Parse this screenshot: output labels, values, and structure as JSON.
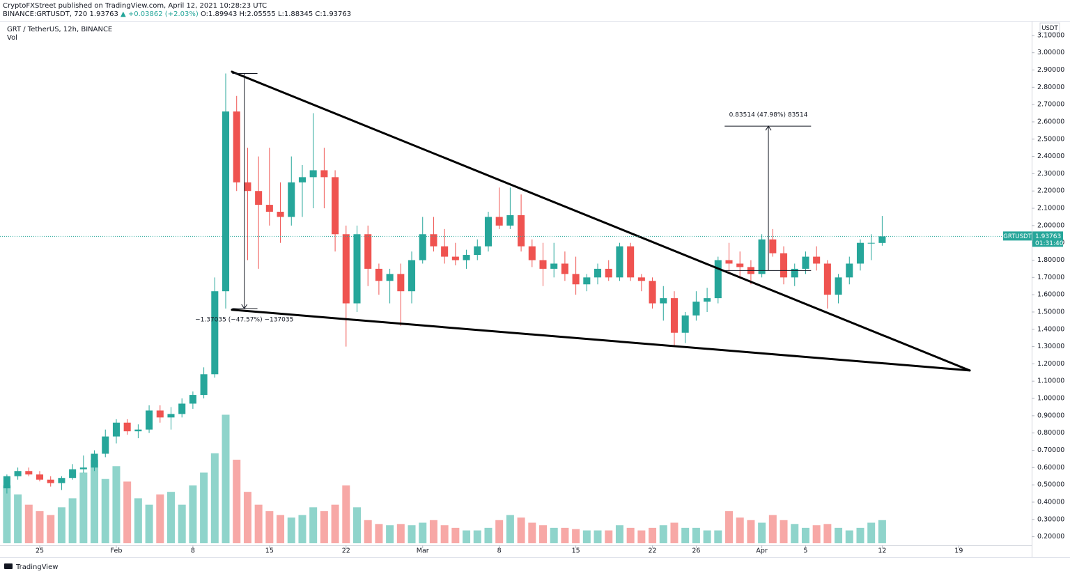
{
  "header": {
    "line1": "CryptoFXStreet published on TradingView.com, April 12, 2021 10:28:23 UTC",
    "symbol": "BINANCE:GRTUSDT, 720",
    "price": "1.93763",
    "change": "▲ +0.03862 (+2.03%)",
    "ohlc": "O:1.89943 H:2.05555 L:1.88345 C:1.93763"
  },
  "footer": {
    "brand": "TradingView"
  },
  "chart_data": {
    "type": "candlestick",
    "title": "GRT / TetherUS, 12h, BINANCE",
    "volume_label": "Vol",
    "currency": "USDT",
    "symbol_label": "GRTUSDT",
    "countdown": "01:31:40",
    "up_color": "#26a69a",
    "down_color": "#ef5350",
    "up_volume_color": "#8fd4cb",
    "down_volume_color": "#f7a8a6",
    "trendline_color": "#000000",
    "price_line_color": "#26a69a",
    "grid": false,
    "x": [
      22,
      23,
      24,
      25,
      26,
      27,
      28,
      29,
      30,
      31,
      32,
      33,
      34,
      35,
      36,
      37,
      38,
      39,
      40,
      41,
      42,
      43,
      44,
      45,
      46,
      47,
      48,
      49,
      50,
      51,
      52,
      53,
      54,
      55,
      56,
      57,
      58,
      59,
      60,
      61,
      62,
      63,
      64,
      65,
      66,
      67,
      68,
      69,
      70,
      71,
      72,
      73,
      74,
      75,
      76,
      77,
      78,
      79,
      80,
      81,
      82,
      83,
      84,
      85,
      86,
      87,
      88,
      89,
      90,
      91,
      92,
      93,
      94,
      95,
      96,
      97,
      98,
      99,
      100,
      101,
      102
    ],
    "open": [
      0.48,
      0.55,
      0.58,
      0.56,
      0.53,
      0.51,
      0.54,
      0.59,
      0.6,
      0.68,
      0.78,
      0.86,
      0.81,
      0.82,
      0.93,
      0.89,
      0.91,
      0.97,
      1.02,
      1.14,
      1.62,
      2.66,
      2.25,
      2.2,
      2.12,
      2.08,
      2.05,
      2.25,
      2.28,
      2.32,
      2.28,
      1.95,
      1.55,
      1.95,
      1.75,
      1.68,
      1.72,
      1.62,
      1.8,
      1.95,
      1.88,
      1.82,
      1.8,
      1.83,
      1.88,
      2.05,
      2.0,
      2.06,
      1.88,
      1.8,
      1.75,
      1.78,
      1.72,
      1.66,
      1.7,
      1.75,
      1.7,
      1.88,
      1.7,
      1.68,
      1.55,
      1.58,
      1.38,
      1.48,
      1.56,
      1.58,
      1.8,
      1.78,
      1.76,
      1.72,
      1.92,
      1.84,
      1.7,
      1.75,
      1.82,
      1.78,
      1.6,
      1.7,
      1.78,
      1.9,
      1.89943
    ],
    "high": [
      0.56,
      0.6,
      0.6,
      0.58,
      0.55,
      0.55,
      0.62,
      0.67,
      0.7,
      0.82,
      0.88,
      0.88,
      0.85,
      0.96,
      0.96,
      0.95,
      1.0,
      1.04,
      1.18,
      1.7,
      2.88,
      2.75,
      2.45,
      2.4,
      2.45,
      2.25,
      2.4,
      2.35,
      2.65,
      2.45,
      2.32,
      2.0,
      2.0,
      2.0,
      1.78,
      1.75,
      1.78,
      1.85,
      2.05,
      2.05,
      1.98,
      1.9,
      1.86,
      1.92,
      2.08,
      2.22,
      2.22,
      2.18,
      1.92,
      1.9,
      1.9,
      1.85,
      1.82,
      1.72,
      1.78,
      1.8,
      1.9,
      1.9,
      1.72,
      1.7,
      1.65,
      1.62,
      1.5,
      1.62,
      1.64,
      1.82,
      1.9,
      1.85,
      1.8,
      1.95,
      1.98,
      1.88,
      1.78,
      1.85,
      1.88,
      1.8,
      1.72,
      1.82,
      1.92,
      1.95,
      2.05555
    ],
    "low": [
      0.45,
      0.53,
      0.55,
      0.52,
      0.49,
      0.47,
      0.53,
      0.57,
      0.58,
      0.66,
      0.74,
      0.79,
      0.77,
      0.8,
      0.86,
      0.82,
      0.89,
      0.94,
      1.0,
      1.12,
      1.52,
      2.2,
      1.8,
      1.75,
      2.0,
      1.9,
      2.0,
      2.05,
      2.1,
      2.1,
      1.85,
      1.3,
      1.5,
      1.65,
      1.6,
      1.55,
      1.42,
      1.55,
      1.78,
      1.85,
      1.78,
      1.77,
      1.75,
      1.8,
      1.85,
      1.98,
      1.98,
      1.85,
      1.76,
      1.65,
      1.7,
      1.68,
      1.6,
      1.62,
      1.66,
      1.68,
      1.68,
      1.68,
      1.62,
      1.52,
      1.45,
      1.3,
      1.32,
      1.45,
      1.5,
      1.55,
      1.72,
      1.7,
      1.66,
      1.7,
      1.82,
      1.66,
      1.65,
      1.72,
      1.74,
      1.52,
      1.55,
      1.66,
      1.74,
      1.8,
      1.88345
    ],
    "close": [
      0.55,
      0.58,
      0.56,
      0.53,
      0.51,
      0.54,
      0.59,
      0.6,
      0.68,
      0.78,
      0.86,
      0.81,
      0.82,
      0.93,
      0.89,
      0.91,
      0.97,
      1.02,
      1.14,
      1.62,
      2.66,
      2.25,
      2.2,
      2.12,
      2.08,
      2.05,
      2.25,
      2.28,
      2.32,
      2.28,
      1.95,
      1.55,
      1.95,
      1.75,
      1.68,
      1.72,
      1.62,
      1.8,
      1.95,
      1.88,
      1.82,
      1.8,
      1.83,
      1.88,
      2.05,
      2.0,
      2.06,
      1.88,
      1.8,
      1.75,
      1.78,
      1.72,
      1.66,
      1.7,
      1.75,
      1.7,
      1.88,
      1.7,
      1.68,
      1.55,
      1.58,
      1.38,
      1.48,
      1.56,
      1.58,
      1.8,
      1.78,
      1.76,
      1.72,
      1.92,
      1.84,
      1.7,
      1.75,
      1.82,
      1.78,
      1.6,
      1.7,
      1.78,
      1.9,
      1.9,
      1.93763
    ],
    "volume": [
      45,
      38,
      30,
      25,
      22,
      28,
      35,
      55,
      65,
      50,
      60,
      48,
      35,
      30,
      38,
      40,
      30,
      45,
      55,
      70,
      100,
      65,
      40,
      30,
      25,
      22,
      20,
      22,
      28,
      25,
      30,
      45,
      28,
      18,
      15,
      14,
      15,
      14,
      16,
      18,
      14,
      12,
      10,
      10,
      12,
      18,
      22,
      20,
      16,
      14,
      12,
      12,
      11,
      10,
      10,
      10,
      14,
      12,
      10,
      12,
      14,
      16,
      12,
      12,
      10,
      10,
      25,
      20,
      18,
      16,
      22,
      18,
      15,
      12,
      14,
      15,
      12,
      10,
      12,
      16,
      18
    ],
    "xlim": [
      21.37,
      115.6
    ],
    "ylim": [
      0.15,
      3.172
    ],
    "vlim": [
      0,
      110
    ],
    "xticks": [
      {
        "value": 25,
        "label": "25"
      },
      {
        "value": 32,
        "label": "Feb"
      },
      {
        "value": 39,
        "label": "8"
      },
      {
        "value": 46,
        "label": "15"
      },
      {
        "value": 53,
        "label": "22"
      },
      {
        "value": 60,
        "label": "Mar"
      },
      {
        "value": 67,
        "label": "8"
      },
      {
        "value": 74,
        "label": "15"
      },
      {
        "value": 81,
        "label": "22"
      },
      {
        "value": 85,
        "label": "26"
      },
      {
        "value": 91,
        "label": "Apr"
      },
      {
        "value": 95,
        "label": "5"
      },
      {
        "value": 102,
        "label": "12"
      },
      {
        "value": 109,
        "label": "19"
      }
    ],
    "yticks": [
      {
        "value": 0.2,
        "label": "0.20000"
      },
      {
        "value": 0.3,
        "label": "0.30000"
      },
      {
        "value": 0.4,
        "label": "0.40000"
      },
      {
        "value": 0.5,
        "label": "0.50000"
      },
      {
        "value": 0.6,
        "label": "0.60000"
      },
      {
        "value": 0.7,
        "label": "0.70000"
      },
      {
        "value": 0.8,
        "label": "0.80000"
      },
      {
        "value": 0.9,
        "label": "0.90000"
      },
      {
        "value": 1.0,
        "label": "1.00000"
      },
      {
        "value": 1.1,
        "label": "1.10000"
      },
      {
        "value": 1.2,
        "label": "1.20000"
      },
      {
        "value": 1.3,
        "label": "1.30000"
      },
      {
        "value": 1.4,
        "label": "1.40000"
      },
      {
        "value": 1.5,
        "label": "1.50000"
      },
      {
        "value": 1.6,
        "label": "1.60000"
      },
      {
        "value": 1.7,
        "label": "1.70000"
      },
      {
        "value": 1.8,
        "label": "1.80000"
      },
      {
        "value": 1.9,
        "label": "1.90000"
      },
      {
        "value": 2.0,
        "label": "2.00000"
      },
      {
        "value": 2.1,
        "label": "2.10000"
      },
      {
        "value": 2.2,
        "label": "2.20000"
      },
      {
        "value": 2.3,
        "label": "2.30000"
      },
      {
        "value": 2.4,
        "label": "2.40000"
      },
      {
        "value": 2.5,
        "label": "2.50000"
      },
      {
        "value": 2.6,
        "label": "2.60000"
      },
      {
        "value": 2.7,
        "label": "2.70000"
      },
      {
        "value": 2.8,
        "label": "2.80000"
      },
      {
        "value": 2.9,
        "label": "2.90000"
      },
      {
        "value": 3.0,
        "label": "3.00000"
      },
      {
        "value": 3.1,
        "label": "3.10000"
      }
    ],
    "trendlines": [
      {
        "x": [
          42.57,
          110.0
        ],
        "y": [
          2.89,
          1.162
        ]
      },
      {
        "x": [
          42.57,
          110.0
        ],
        "y": [
          1.513,
          1.162
        ]
      }
    ],
    "measurements": [
      {
        "label": "−1.37035 (−47.57%) −137035",
        "x": 43.7,
        "from": 2.88,
        "to": 1.52,
        "x_start": 42.6,
        "x_end": 44.9
      },
      {
        "label": "0.83514 (47.98%) 83514",
        "x": 91.6,
        "from": 1.74,
        "to": 2.575,
        "x_start": 87.6,
        "x_end": 95.5
      }
    ]
  }
}
